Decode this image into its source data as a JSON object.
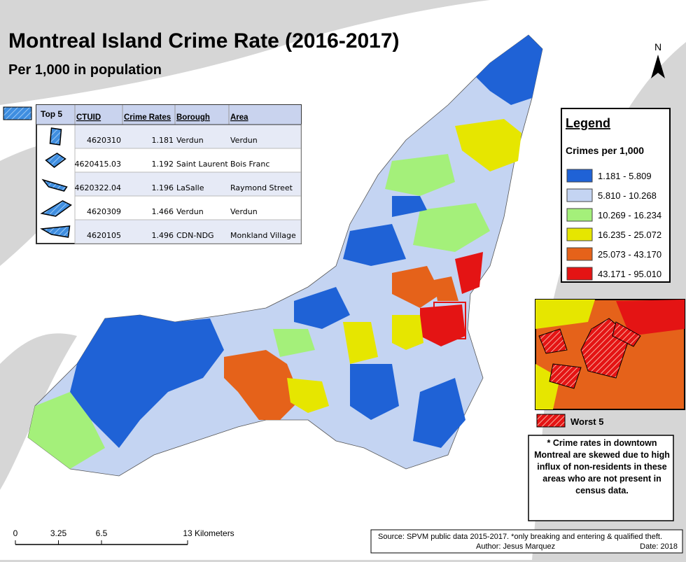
{
  "title": "Montreal Island Crime Rate (2016-2017)",
  "subtitle": "Per 1,000 in population",
  "north": "N",
  "top5": {
    "label": "Top 5",
    "columns": [
      "CTUID",
      "Crime Rates",
      "Borough",
      "Area"
    ],
    "rows": [
      [
        "4620310",
        1.181,
        "Verdun",
        "Verdun"
      ],
      [
        "4620415.03",
        1.192,
        "Saint Laurent",
        "Bois Franc"
      ],
      [
        "4620322.04",
        1.196,
        "LaSalle",
        "Raymond Street"
      ],
      [
        "4620309",
        1.466,
        "Verdun",
        "Verdun"
      ],
      [
        "4620105",
        1.496,
        "CDN-NDG",
        "Monkland Village"
      ]
    ]
  },
  "legend": {
    "title": "Legend",
    "subtitle": "Crimes per 1,000",
    "items": [
      {
        "label": "1.181 - 5.809",
        "color": "#1f62d6"
      },
      {
        "label": "5.810 - 10.268",
        "color": "#c4d4f2"
      },
      {
        "label": "10.269 - 16.234",
        "color": "#a4f07a"
      },
      {
        "label": "16.235 - 25.072",
        "color": "#e6e600"
      },
      {
        "label": "25.073 - 43.170",
        "color": "#e5621a"
      },
      {
        "label": "43.171 - 95.010",
        "color": "#e41414"
      }
    ]
  },
  "worst": {
    "label": "Worst 5"
  },
  "note": "* Crime rates in downtown Montreal are skewed due to high influx of non-residents in these areas who are not present in census data.",
  "scale": {
    "ticks": [
      0,
      3.25,
      6.5,
      13
    ],
    "unit": "Kilometers"
  },
  "source": {
    "line": "Source: SPVM public data 2015-2017. *only breaking and entering & qualified theft.",
    "author": "Author: Jesus Marquez",
    "date": "Date: 2018"
  }
}
